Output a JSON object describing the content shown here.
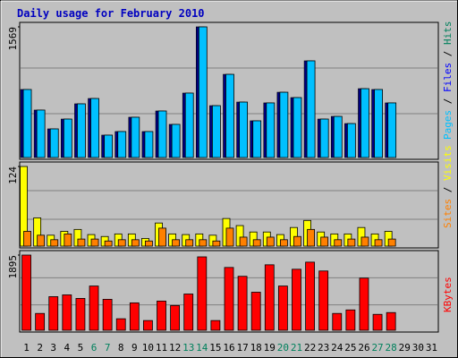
{
  "title": "Daily usage for February 2010",
  "chart_data": [
    {
      "type": "bar",
      "ylim": [
        0,
        1569
      ],
      "yticks": [
        1569
      ],
      "series": [
        {
          "color": "#00c0ff",
          "values": [
            817,
            570,
            344,
            462,
            645,
            709,
            269,
            312,
            484,
            312,
            559,
            398,
            774,
            1569,
            623,
            999,
            666,
            441,
            656,
            784,
            720,
            1161,
            462,
            494,
            408,
            827,
            817,
            656,
            null,
            null,
            null
          ]
        }
      ],
      "legend": [
        {
          "text": "Pages",
          "color": "#00c0ff"
        },
        {
          "text": " / ",
          "color": "#000000"
        },
        {
          "text": "Files",
          "color": "#0000ff"
        },
        {
          "text": " / ",
          "color": "#000000"
        },
        {
          "text": "Hits",
          "color": "#00805c"
        }
      ]
    },
    {
      "type": "bar",
      "ylim": [
        0,
        124
      ],
      "yticks": [
        124
      ],
      "series": [
        {
          "color": "#ffff00",
          "values": [
            124,
            44,
            17,
            23,
            26,
            18,
            15,
            19,
            19,
            12,
            36,
            19,
            18,
            19,
            17,
            43,
            32,
            22,
            22,
            18,
            29,
            40,
            22,
            19,
            19,
            29,
            19,
            23,
            null,
            null,
            null
          ]
        },
        {
          "color": "#ff8000",
          "values": [
            23,
            17,
            10,
            19,
            11,
            11,
            8,
            10,
            10,
            8,
            28,
            10,
            10,
            10,
            8,
            28,
            14,
            10,
            14,
            10,
            15,
            26,
            14,
            10,
            11,
            14,
            10,
            11,
            null,
            null,
            null
          ]
        }
      ],
      "legend": [
        {
          "text": "Sites",
          "color": "#ff8000"
        },
        {
          "text": " / ",
          "color": "#000000"
        },
        {
          "text": "Visits",
          "color": "#ffff00"
        }
      ]
    },
    {
      "type": "bar",
      "ylim": [
        0,
        1895
      ],
      "yticks": [
        1895
      ],
      "series": [
        {
          "color": "#ff0000",
          "values": [
            1895,
            424,
            847,
            892,
            803,
            1115,
            780,
            290,
            691,
            245,
            736,
            624,
            914,
            1850,
            245,
            1583,
            1360,
            959,
            1650,
            1115,
            1538,
            1717,
            1494,
            424,
            513,
            1315,
            401,
            446,
            null,
            null,
            null
          ]
        }
      ],
      "legend": [
        {
          "text": "KBytes",
          "color": "#ff0000"
        }
      ],
      "categories": [
        "1",
        "2",
        "3",
        "4",
        "5",
        "6",
        "7",
        "8",
        "9",
        "10",
        "11",
        "12",
        "13",
        "14",
        "15",
        "16",
        "17",
        "18",
        "19",
        "20",
        "21",
        "22",
        "23",
        "24",
        "25",
        "26",
        "27",
        "28",
        "29",
        "30",
        "31"
      ],
      "category_colors": [
        "#000000",
        "#000000",
        "#000000",
        "#000000",
        "#000000",
        "#00805c",
        "#00805c",
        "#000000",
        "#000000",
        "#000000",
        "#000000",
        "#000000",
        "#00805c",
        "#00805c",
        "#000000",
        "#000000",
        "#000000",
        "#000000",
        "#000000",
        "#00805c",
        "#00805c",
        "#000000",
        "#000000",
        "#000000",
        "#000000",
        "#000000",
        "#00805c",
        "#00805c",
        "#000000",
        "#000000",
        "#000000"
      ]
    }
  ]
}
